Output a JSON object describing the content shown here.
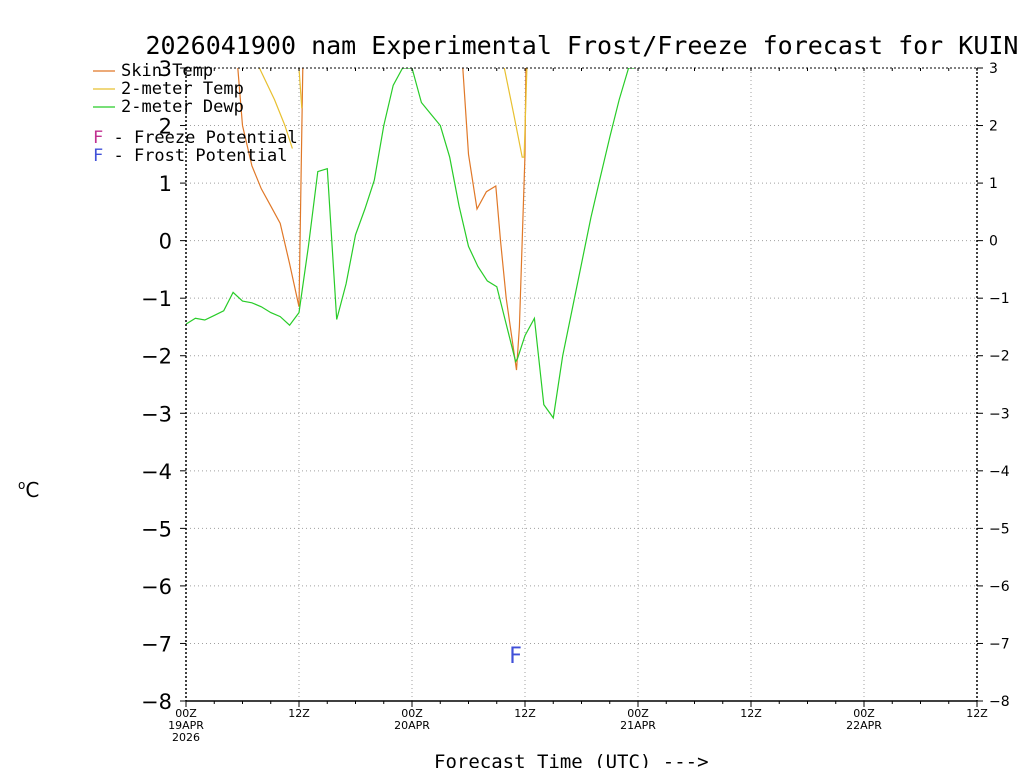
{
  "colors": {
    "skin_temp": "#e07828",
    "temp_2m": "#e8c030",
    "dewp_2m": "#28cc28",
    "freeze": "#c03090",
    "frost": "#4050d8",
    "grid": "#a0a0a0",
    "axis": "#000000"
  },
  "chart_data": {
    "type": "line",
    "title": "2026041900 nam Experimental Frost/Freeze forecast for KUIN",
    "xlabel": "Forecast Time (UTC) --->",
    "ylabel": "°C",
    "ylabel_sup": "o",
    "ylabel_unit": "C",
    "xlim": [
      0,
      84
    ],
    "ylim": [
      -8,
      3
    ],
    "grid": true,
    "yticks": [
      3,
      2,
      1,
      0,
      -1,
      -2,
      -3,
      -4,
      -5,
      -6,
      -7,
      -8
    ],
    "ytick_labels": [
      "3",
      "2",
      "1",
      "0",
      "−1",
      "−2",
      "−3",
      "−4",
      "−5",
      "−6",
      "−7",
      "−8"
    ],
    "xticks": [
      {
        "x": 0,
        "lines": [
          "00Z",
          "19APR",
          "2026"
        ]
      },
      {
        "x": 12,
        "lines": [
          "12Z"
        ]
      },
      {
        "x": 24,
        "lines": [
          "00Z",
          "20APR"
        ]
      },
      {
        "x": 36,
        "lines": [
          "12Z"
        ]
      },
      {
        "x": 48,
        "lines": [
          "00Z",
          "21APR"
        ]
      },
      {
        "x": 60,
        "lines": [
          "12Z"
        ]
      },
      {
        "x": 72,
        "lines": [
          "00Z",
          "22APR"
        ]
      },
      {
        "x": 84,
        "lines": [
          "12Z"
        ]
      }
    ],
    "series": [
      {
        "name": "Skin Temp",
        "color_key": "skin_temp",
        "x": [
          5.5,
          6,
          7,
          8,
          9,
          10,
          11,
          12,
          12.4
        ],
        "y": [
          3.0,
          2.0,
          1.3,
          0.9,
          0.6,
          0.3,
          -0.4,
          -1.15,
          3.0
        ],
        "segments": [
          [
            0,
            8
          ]
        ],
        "extra": [
          {
            "x": [
              29.4,
              30,
              30.9,
              31.9,
              32.9,
              33.4,
              34,
              35.1,
              35.4,
              36,
              36.1
            ],
            "y": [
              3.0,
              1.5,
              0.55,
              0.85,
              0.95,
              0.0,
              -1.0,
              -2.25,
              -1.5,
              1.5,
              3.0
            ]
          }
        ]
      },
      {
        "name": "2-meter Temp",
        "color_key": "temp_2m",
        "segments_xy": [
          {
            "x": [
              7.8,
              9.4,
              10.5,
              11.3
            ],
            "y": [
              3.0,
              2.45,
              2.0,
              1.6
            ]
          },
          {
            "x": [
              12.0,
              12.3
            ],
            "y": [
              3.0,
              2.3
            ]
          },
          {
            "x": [
              33.8,
              34.8,
              35.7,
              35.9,
              36.2
            ],
            "y": [
              3.0,
              2.2,
              1.45,
              1.45,
              3.0
            ]
          }
        ]
      },
      {
        "name": "2-meter Dewp",
        "color_key": "dewp_2m",
        "x": [
          0,
          1,
          2,
          3,
          4,
          5,
          6,
          7,
          8,
          9,
          10,
          11,
          12,
          13,
          14,
          15,
          16,
          17,
          18,
          19,
          20,
          21,
          22,
          23,
          24,
          25,
          26,
          27,
          28,
          29,
          30,
          31,
          32,
          33,
          34,
          35,
          35.2,
          36,
          37,
          38,
          39,
          40,
          41,
          42,
          43,
          44,
          45,
          46,
          47,
          47.6
        ],
        "y": [
          -1.45,
          -1.35,
          -1.38,
          -1.3,
          -1.22,
          -0.9,
          -1.05,
          -1.08,
          -1.15,
          -1.25,
          -1.32,
          -1.47,
          -1.25,
          -0.1,
          1.2,
          1.25,
          -1.37,
          -0.75,
          0.1,
          0.55,
          1.05,
          2.0,
          2.7,
          3.0,
          3.0,
          2.4,
          2.2,
          2.0,
          1.45,
          0.6,
          -0.1,
          -0.45,
          -0.7,
          -0.8,
          -1.45,
          -2.1,
          -2.05,
          -1.65,
          -1.35,
          -2.85,
          -3.08,
          -2.0,
          -1.2,
          -0.4,
          0.4,
          1.1,
          1.8,
          2.45,
          3.0,
          3.0
        ]
      }
    ],
    "frost_marks": [
      {
        "x": 35,
        "y": -7.2,
        "label": "F"
      }
    ]
  },
  "legend": {
    "items": [
      {
        "label": "Skin Temp",
        "color_key": "skin_temp"
      },
      {
        "label": "2-meter Temp",
        "color_key": "temp_2m"
      },
      {
        "label": "2-meter Dewp",
        "color_key": "dewp_2m"
      }
    ],
    "potentials": [
      {
        "letter": "F",
        "label": " - Freeze Potential",
        "color_key": "freeze"
      },
      {
        "letter": "F",
        "label": " - Frost Potential",
        "color_key": "frost"
      }
    ]
  }
}
